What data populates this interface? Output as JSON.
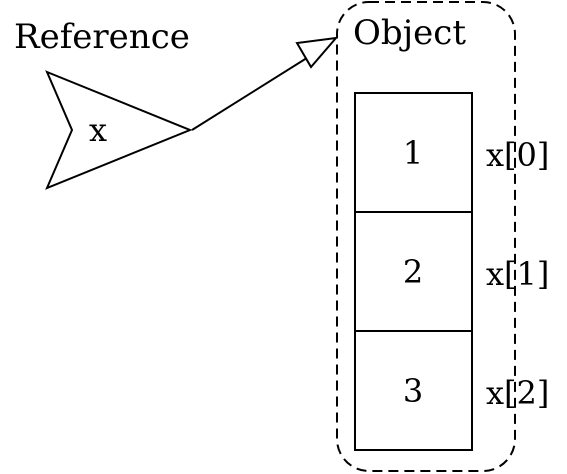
{
  "reference": {
    "label": "Reference",
    "variable": "x"
  },
  "object": {
    "label": "Object",
    "cells": [
      {
        "value": "1",
        "index_label": "x[0]"
      },
      {
        "value": "2",
        "index_label": "x[1]"
      },
      {
        "value": "3",
        "index_label": "x[2]"
      }
    ]
  },
  "colors": {
    "stroke": "#000000",
    "background": "#ffffff"
  }
}
